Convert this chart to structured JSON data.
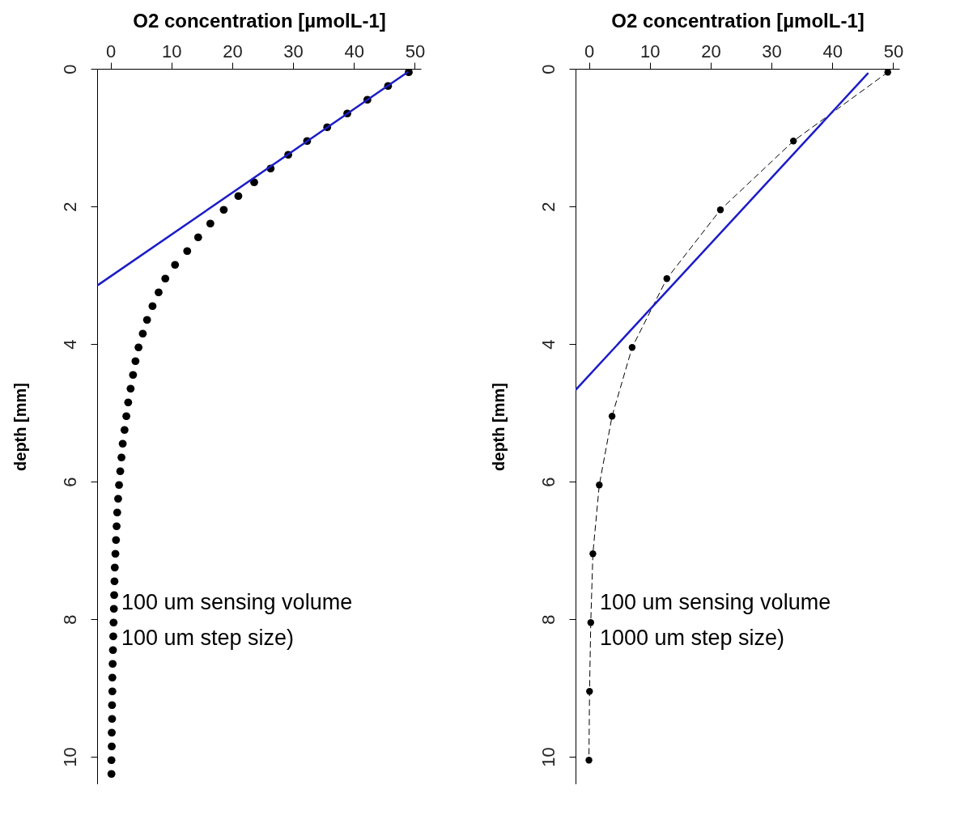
{
  "chart_data": [
    {
      "type": "scatter",
      "xlabel": "O2 concentration [µmolL-1]",
      "ylabel": "depth [mm]",
      "xlim": [
        -2.2,
        51
      ],
      "xticks": [
        0,
        10,
        20,
        30,
        40,
        50
      ],
      "ylim": [
        10.4,
        0
      ],
      "yticks": [
        0,
        2,
        4,
        6,
        8,
        10
      ],
      "annotations": [
        "100 um sensing volume",
        "100 um step size)"
      ],
      "series": [
        {
          "type": "scatter",
          "marker": "circle",
          "color": "#000000",
          "x": [
            49.0,
            45.6,
            42.2,
            38.9,
            35.6,
            32.3,
            29.2,
            26.3,
            23.6,
            21.0,
            18.6,
            16.4,
            14.4,
            12.6,
            10.6,
            9.0,
            7.9,
            6.9,
            6.0,
            5.3,
            4.6,
            4.1,
            3.7,
            3.3,
            2.9,
            2.6,
            2.3,
            2.0,
            1.8,
            1.6,
            1.4,
            1.25,
            1.1,
            1.0,
            0.9,
            0.8,
            0.7,
            0.65,
            0.6,
            0.55,
            0.5,
            0.45,
            0.4,
            0.35,
            0.3,
            0.3,
            0.25,
            0.25,
            0.2,
            0.2,
            0.15,
            0.15
          ],
          "values": [
            0.05,
            0.25,
            0.45,
            0.65,
            0.85,
            1.05,
            1.25,
            1.45,
            1.65,
            1.85,
            2.05,
            2.25,
            2.45,
            2.65,
            2.85,
            3.05,
            3.25,
            3.45,
            3.65,
            3.85,
            4.05,
            4.25,
            4.45,
            4.65,
            4.85,
            5.05,
            5.25,
            5.45,
            5.65,
            5.85,
            6.05,
            6.25,
            6.45,
            6.65,
            6.85,
            7.05,
            7.25,
            7.45,
            7.65,
            7.85,
            8.05,
            8.25,
            8.45,
            8.65,
            8.85,
            9.05,
            9.25,
            9.45,
            9.65,
            9.85,
            10.05,
            10.25
          ]
        },
        {
          "type": "line",
          "line_style": "solid",
          "color": "#1c1cc8",
          "x": [
            48.8,
            -2.0
          ],
          "values": [
            0.05,
            3.14
          ]
        }
      ]
    },
    {
      "type": "scatter",
      "xlabel": "O2 concentration [µmolL-1]",
      "ylabel": "depth [mm]",
      "xlim": [
        -2.2,
        51
      ],
      "xticks": [
        0,
        10,
        20,
        30,
        40,
        50
      ],
      "ylim": [
        10.4,
        0
      ],
      "yticks": [
        0,
        2,
        4,
        6,
        8,
        10
      ],
      "annotations": [
        "100 um sensing volume",
        "1000 um step size)"
      ],
      "series": [
        {
          "type": "line",
          "marker": "circle",
          "line_style": "dashed",
          "color": "#000000",
          "x": [
            49.1,
            33.6,
            21.6,
            12.8,
            7.1,
            3.8,
            1.7,
            0.65,
            0.3,
            0.1,
            0.0
          ],
          "values": [
            0.05,
            1.05,
            2.05,
            3.05,
            4.05,
            5.05,
            6.05,
            7.05,
            8.05,
            9.05,
            10.05
          ]
        },
        {
          "type": "line",
          "line_style": "solid",
          "color": "#1c1cc8",
          "x": [
            45.8,
            -2.1
          ],
          "values": [
            0.07,
            4.66
          ]
        }
      ]
    }
  ]
}
